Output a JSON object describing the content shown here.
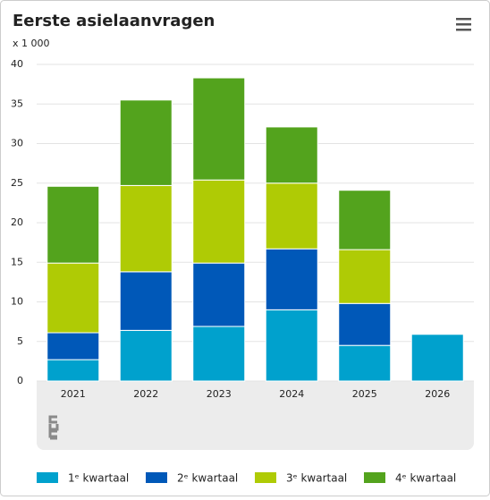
{
  "chart_data": {
    "type": "stacked_bar",
    "title": "Eerste asielaanvragen",
    "y_label": "x 1 000",
    "categories": [
      "2021",
      "2022",
      "2023",
      "2024",
      "2025",
      "2026"
    ],
    "series": [
      {
        "name": "1ᵉ kwartaal",
        "color": "#00a1cd",
        "values": [
          2.7,
          6.4,
          6.9,
          9.0,
          4.5,
          5.9
        ]
      },
      {
        "name": "2ᵉ kwartaal",
        "color": "#0058b8",
        "values": [
          3.4,
          7.4,
          8.0,
          7.7,
          5.3,
          null
        ]
      },
      {
        "name": "3ᵉ kwartaal",
        "color": "#afcb05",
        "values": [
          8.8,
          10.9,
          10.5,
          8.3,
          6.8,
          null
        ]
      },
      {
        "name": "4ᵉ kwartaal",
        "color": "#53a31d",
        "values": [
          9.7,
          10.8,
          12.9,
          7.1,
          7.5,
          null
        ]
      }
    ],
    "ylim": [
      0,
      40
    ],
    "yticks": [
      0,
      5,
      10,
      15,
      20,
      25,
      30,
      35,
      40
    ],
    "grid": true
  }
}
